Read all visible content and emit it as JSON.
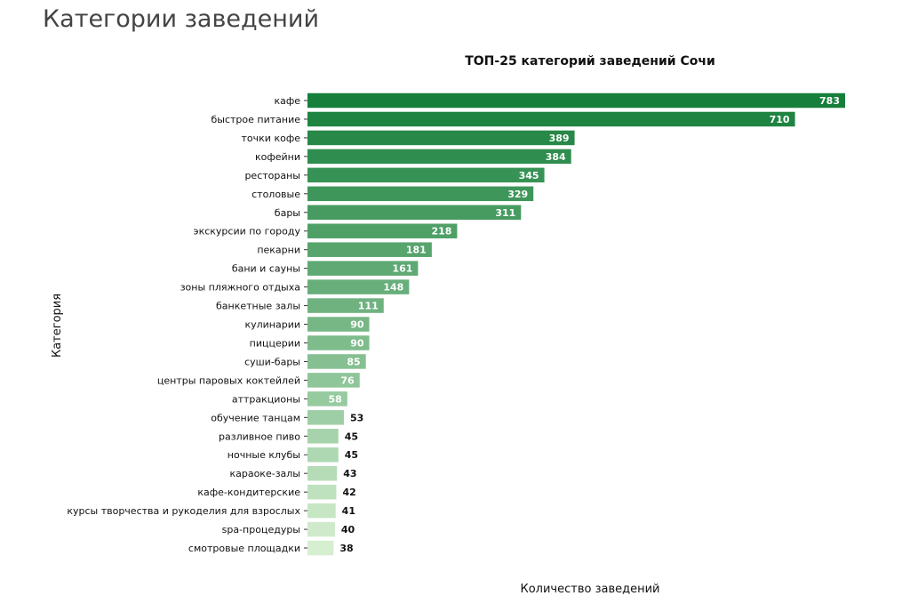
{
  "page": {
    "title": "Категории заведений"
  },
  "chart_data": {
    "type": "bar",
    "orientation": "horizontal",
    "title": "ТОП-25 категорий заведений Сочи",
    "xlabel": "Количество заведений",
    "ylabel": "Категория",
    "xlim": [
      0,
      783
    ],
    "grid": false,
    "color_start": "#177f3c",
    "color_end": "#d6efd0",
    "categories": [
      "кафе",
      "быстрое питание",
      "точки кофе",
      "кофейни",
      "рестораны",
      "столовые",
      "бары",
      "экскурсии по городу",
      "пекарни",
      "бани и сауны",
      "зоны пляжного отдыха",
      "банкетные залы",
      "кулинарии",
      "пиццерии",
      "суши-бары",
      "центры паровых коктейлей",
      "аттракционы",
      "обучение танцам",
      "разливное пиво",
      "ночные клубы",
      "караоке-залы",
      "кафе-кондитерские",
      "курсы творчества и рукоделия для взрослых",
      "spa-процедуры",
      "смотровые площадки"
    ],
    "values": [
      783,
      710,
      389,
      384,
      345,
      329,
      311,
      218,
      181,
      161,
      148,
      111,
      90,
      90,
      85,
      76,
      58,
      53,
      45,
      45,
      43,
      42,
      41,
      40,
      38
    ]
  }
}
